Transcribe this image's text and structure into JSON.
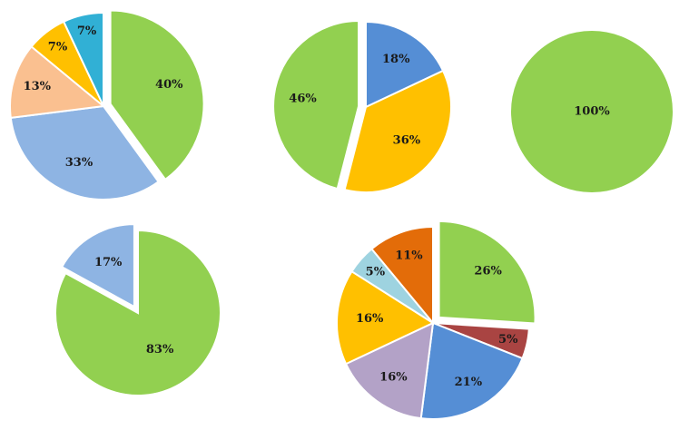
{
  "chart_data": [
    {
      "type": "pie",
      "slices": [
        {
          "value": 40,
          "label": "40%",
          "color": "#92d050",
          "exploded": true
        },
        {
          "value": 33,
          "label": "33%",
          "color": "#8eb4e3",
          "exploded": false
        },
        {
          "value": 13,
          "label": "13%",
          "color": "#fac090",
          "exploded": false
        },
        {
          "value": 7,
          "label": "7%",
          "color": "#ffc000",
          "exploded": false
        },
        {
          "value": 7,
          "label": "7%",
          "color": "#31b0d5",
          "exploded": false
        }
      ]
    },
    {
      "type": "pie",
      "slices": [
        {
          "value": 18,
          "label": "18%",
          "color": "#558ed5",
          "exploded": false
        },
        {
          "value": 36,
          "label": "36%",
          "color": "#ffc000",
          "exploded": false
        },
        {
          "value": 46,
          "label": "46%",
          "color": "#92d050",
          "exploded": true
        }
      ]
    },
    {
      "type": "pie",
      "slices": [
        {
          "value": 100,
          "label": "100%",
          "color": "#92d050",
          "exploded": false
        }
      ]
    },
    {
      "type": "pie",
      "slices": [
        {
          "value": 83,
          "label": "83%",
          "color": "#92d050",
          "exploded": false
        },
        {
          "value": 17,
          "label": "17%",
          "color": "#8eb4e3",
          "exploded": true
        }
      ]
    },
    {
      "type": "pie",
      "slices": [
        {
          "value": 26,
          "label": "26%",
          "color": "#92d050",
          "exploded": true
        },
        {
          "value": 5,
          "label": "5%",
          "color": "#a94442",
          "exploded": false
        },
        {
          "value": 21,
          "label": "21%",
          "color": "#558ed5",
          "exploded": false
        },
        {
          "value": 16,
          "label": "16%",
          "color": "#b3a2c7",
          "exploded": false
        },
        {
          "value": 16,
          "label": "16%",
          "color": "#ffc000",
          "exploded": false
        },
        {
          "value": 5,
          "label": "5%",
          "color": "#9ed3e0",
          "exploded": false
        },
        {
          "value": 11,
          "label": "11%",
          "color": "#e36c09",
          "exploded": false
        }
      ]
    }
  ]
}
